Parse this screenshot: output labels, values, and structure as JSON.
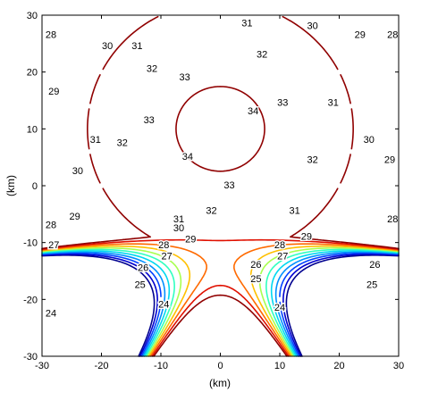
{
  "chart_data": {
    "type": "contour",
    "title": "",
    "xlabel": "(km)",
    "ylabel": "(km)",
    "xlim": [
      -30,
      30
    ],
    "ylim": [
      -30,
      30
    ],
    "xticks": [
      -30,
      -20,
      -10,
      0,
      10,
      20,
      30
    ],
    "yticks": [
      -30,
      -20,
      -10,
      0,
      10,
      20,
      30
    ],
    "grid": false,
    "colormap": "jet",
    "levels": [
      24,
      25,
      26,
      27,
      28,
      29,
      30,
      31,
      32,
      33,
      34
    ],
    "level_colors": {
      "24": "#00008f",
      "25": "#0000cf",
      "26": "#0040ff",
      "27": "#0090ff",
      "28": "#00d8f0",
      "29": "#30ffc0",
      "30": "#a8ff50",
      "31": "#ffc000",
      "32": "#ff6a00",
      "33": "#e01000",
      "34": "#900000"
    },
    "peak": {
      "x": 0,
      "y": 10,
      "value": 34.5
    },
    "contour_labels": [
      {
        "value": "34",
        "x": 5.5,
        "y": 13.0
      },
      {
        "value": "34",
        "x": -5.5,
        "y": 5.0
      },
      {
        "value": "33",
        "x": -6.0,
        "y": 19.0
      },
      {
        "value": "33",
        "x": 10.5,
        "y": 14.5
      },
      {
        "value": "33",
        "x": -12.0,
        "y": 11.5
      },
      {
        "value": "33",
        "x": 1.5,
        "y": 0.0
      },
      {
        "value": "32",
        "x": -11.5,
        "y": 20.5
      },
      {
        "value": "32",
        "x": 7.0,
        "y": 23.0
      },
      {
        "value": "32",
        "x": -16.5,
        "y": 7.5
      },
      {
        "value": "32",
        "x": 15.5,
        "y": 4.5
      },
      {
        "value": "32",
        "x": -1.5,
        "y": -4.5
      },
      {
        "value": "31",
        "x": -14.0,
        "y": 24.5
      },
      {
        "value": "31",
        "x": 4.5,
        "y": 28.5
      },
      {
        "value": "31",
        "x": 19.0,
        "y": 14.5
      },
      {
        "value": "31",
        "x": -21.0,
        "y": 8.0
      },
      {
        "value": "31",
        "x": 12.5,
        "y": -4.5
      },
      {
        "value": "31",
        "x": -7.0,
        "y": -6.0
      },
      {
        "value": "30",
        "x": -19.0,
        "y": 24.5
      },
      {
        "value": "30",
        "x": 15.5,
        "y": 28.0
      },
      {
        "value": "30",
        "x": 25.0,
        "y": 8.0
      },
      {
        "value": "30",
        "x": -24.0,
        "y": 2.5
      },
      {
        "value": "30",
        "x": -7.0,
        "y": -7.5
      },
      {
        "value": "29",
        "x": -28.0,
        "y": 16.5
      },
      {
        "value": "29",
        "x": 23.5,
        "y": 26.5
      },
      {
        "value": "29",
        "x": 28.5,
        "y": 4.5
      },
      {
        "value": "29",
        "x": -24.5,
        "y": -5.5
      },
      {
        "value": "29",
        "x": -5.0,
        "y": -9.5
      },
      {
        "value": "29",
        "x": 14.5,
        "y": -9.0
      },
      {
        "value": "28",
        "x": -28.5,
        "y": 26.5
      },
      {
        "value": "28",
        "x": 29.0,
        "y": 26.5
      },
      {
        "value": "28",
        "x": -28.5,
        "y": -7.0
      },
      {
        "value": "28",
        "x": 29.0,
        "y": -6.0
      },
      {
        "value": "28",
        "x": -9.5,
        "y": -10.5
      },
      {
        "value": "28",
        "x": 10.0,
        "y": -10.5
      },
      {
        "value": "27",
        "x": -28.0,
        "y": -10.5
      },
      {
        "value": "27",
        "x": -9.0,
        "y": -12.5
      },
      {
        "value": "27",
        "x": 10.5,
        "y": -12.5
      },
      {
        "value": "26",
        "x": -13.0,
        "y": -14.5
      },
      {
        "value": "26",
        "x": 6.0,
        "y": -14.0
      },
      {
        "value": "26",
        "x": 26.0,
        "y": -14.0
      },
      {
        "value": "25",
        "x": -13.5,
        "y": -17.5
      },
      {
        "value": "25",
        "x": 6.0,
        "y": -16.5
      },
      {
        "value": "25",
        "x": 25.5,
        "y": -17.5
      },
      {
        "value": "24",
        "x": -28.5,
        "y": -22.5
      },
      {
        "value": "24",
        "x": -9.5,
        "y": -21.0
      },
      {
        "value": "24",
        "x": 10.0,
        "y": -21.5
      }
    ]
  }
}
